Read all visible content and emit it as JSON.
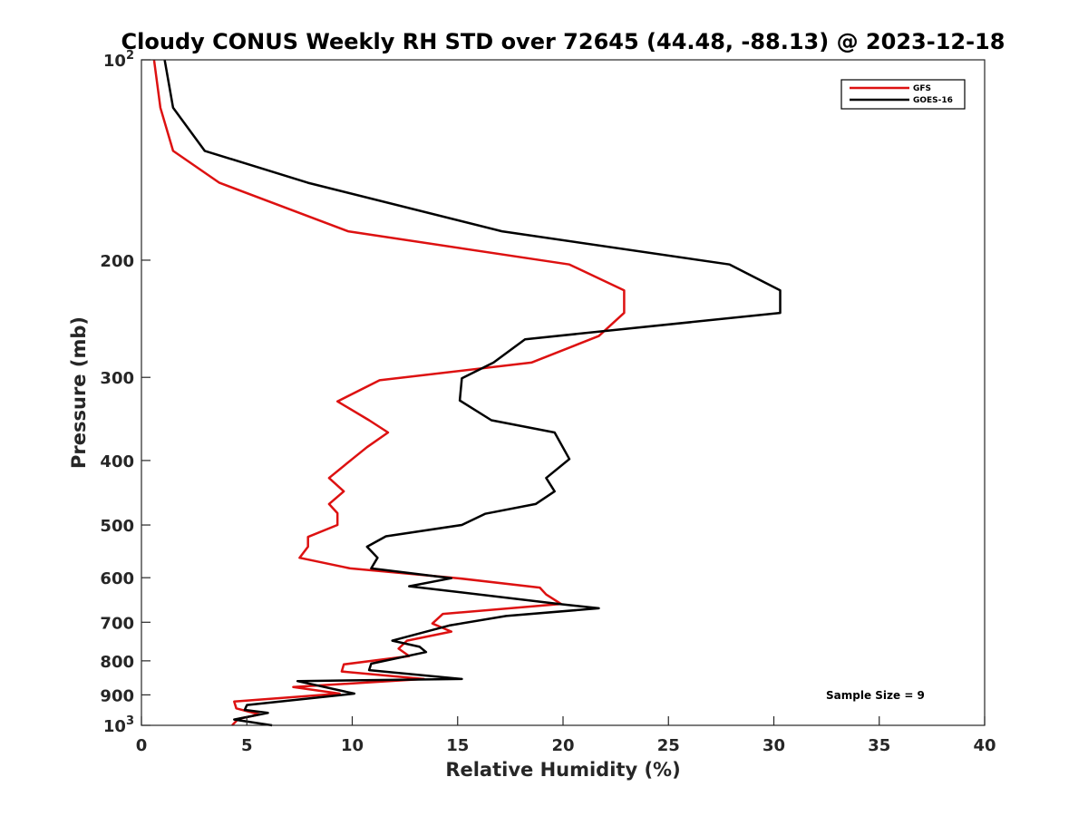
{
  "chart_data": {
    "type": "line",
    "title": "Cloudy CONUS Weekly RH STD over 72645 (44.48, -88.13) @ 2023-12-18",
    "xlabel": "Relative Humidity (%)",
    "ylabel": "Pressure (mb)",
    "xlim": [
      0,
      40
    ],
    "ylim": [
      100,
      1000
    ],
    "y_scale": "log",
    "y_reversed": true,
    "x_ticks": [
      "0",
      "5",
      "10",
      "15",
      "20",
      "25",
      "30",
      "35",
      "40"
    ],
    "y_ticks": [
      {
        "value": 100,
        "base": "10",
        "exp": "2"
      },
      {
        "value": 200,
        "label": "200"
      },
      {
        "value": 300,
        "label": "300"
      },
      {
        "value": 400,
        "label": "400"
      },
      {
        "value": 500,
        "label": "500"
      },
      {
        "value": 600,
        "label": "600"
      },
      {
        "value": 700,
        "label": "700"
      },
      {
        "value": 800,
        "label": "800"
      },
      {
        "value": 900,
        "label": "900"
      },
      {
        "value": 1000,
        "base": "10",
        "exp": "3"
      }
    ],
    "grid": false,
    "legend": "top-right",
    "annotation": "Sample Size = 9",
    "series": [
      {
        "name": "GFS",
        "color": "#dd1111",
        "points": [
          [
            0.6,
            100
          ],
          [
            0.9,
            118
          ],
          [
            1.5,
            137
          ],
          [
            3.7,
            153
          ],
          [
            9.8,
            181
          ],
          [
            20.3,
            203
          ],
          [
            22.9,
            222
          ],
          [
            22.9,
            240
          ],
          [
            21.7,
            260
          ],
          [
            18.5,
            285
          ],
          [
            11.3,
            303
          ],
          [
            9.3,
            326
          ],
          [
            10.8,
            348
          ],
          [
            11.7,
            363
          ],
          [
            10.7,
            382
          ],
          [
            10.0,
            398
          ],
          [
            8.9,
            425
          ],
          [
            9.6,
            445
          ],
          [
            8.9,
            465
          ],
          [
            9.3,
            480
          ],
          [
            9.3,
            500
          ],
          [
            7.9,
            521
          ],
          [
            7.9,
            539
          ],
          [
            7.5,
            560
          ],
          [
            9.9,
            581
          ],
          [
            15.0,
            601
          ],
          [
            18.9,
            621
          ],
          [
            19.2,
            636
          ],
          [
            19.9,
            657
          ],
          [
            14.3,
            680
          ],
          [
            13.8,
            703
          ],
          [
            14.7,
            723
          ],
          [
            12.6,
            746
          ],
          [
            12.2,
            767
          ],
          [
            12.7,
            787
          ],
          [
            9.6,
            810
          ],
          [
            9.5,
            830
          ],
          [
            13.4,
            852
          ],
          [
            7.2,
            876
          ],
          [
            9.4,
            896
          ],
          [
            4.4,
            921
          ],
          [
            4.5,
            943
          ],
          [
            5.6,
            963
          ],
          [
            4.6,
            978
          ],
          [
            4.3,
            1000
          ]
        ]
      },
      {
        "name": "GOES-16",
        "color": "#000000",
        "points": [
          [
            1.1,
            100
          ],
          [
            1.5,
            118
          ],
          [
            3.0,
            137
          ],
          [
            7.9,
            153
          ],
          [
            17.1,
            181
          ],
          [
            27.9,
            203
          ],
          [
            30.3,
            222
          ],
          [
            30.3,
            240
          ],
          [
            18.2,
            263
          ],
          [
            16.7,
            285
          ],
          [
            15.2,
            301
          ],
          [
            15.1,
            325
          ],
          [
            16.6,
            348
          ],
          [
            19.6,
            363
          ],
          [
            20.3,
            398
          ],
          [
            19.2,
            425
          ],
          [
            19.6,
            445
          ],
          [
            18.7,
            465
          ],
          [
            16.3,
            481
          ],
          [
            15.2,
            500
          ],
          [
            11.6,
            520
          ],
          [
            10.7,
            539
          ],
          [
            11.2,
            560
          ],
          [
            10.9,
            581
          ],
          [
            14.7,
            601
          ],
          [
            12.7,
            618
          ],
          [
            19.8,
            657
          ],
          [
            21.7,
            667
          ],
          [
            17.3,
            685
          ],
          [
            14.6,
            708
          ],
          [
            11.9,
            746
          ],
          [
            13.2,
            762
          ],
          [
            13.5,
            776
          ],
          [
            10.9,
            808
          ],
          [
            10.8,
            826
          ],
          [
            15.2,
            852
          ],
          [
            7.4,
            858
          ],
          [
            10.1,
            896
          ],
          [
            8.7,
            906
          ],
          [
            5.0,
            932
          ],
          [
            4.9,
            948
          ],
          [
            6.0,
            958
          ],
          [
            4.4,
            980
          ],
          [
            6.2,
            1000
          ]
        ]
      }
    ]
  }
}
